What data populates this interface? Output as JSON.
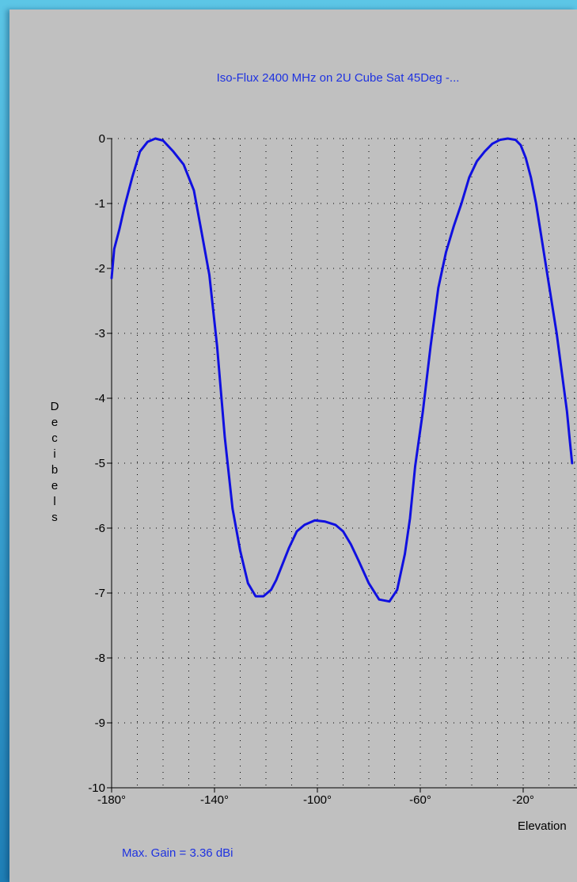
{
  "chart_data": {
    "type": "line",
    "title": "Iso-Flux 2400 MHz on 2U Cube Sat 45Deg -...",
    "ylabel": "Decibels",
    "xlabel": "Elevation",
    "xlim": [
      -180,
      0
    ],
    "ylim": [
      -10,
      0
    ],
    "grid": true,
    "x_ticks": [
      "-180°",
      "-140°",
      "-100°",
      "-60°",
      "-20°"
    ],
    "y_ticks": [
      "0",
      "-1",
      "-2",
      "-3",
      "-4",
      "-5",
      "-6",
      "-7",
      "-8",
      "-9",
      "-10"
    ],
    "series": [
      {
        "color": "#1010e0",
        "x": [
          -180,
          -179,
          -177,
          -175,
          -172,
          -169,
          -166,
          -163,
          -160,
          -156,
          -152,
          -148,
          -145,
          -142,
          -139,
          -136,
          -133,
          -130,
          -127,
          -124,
          -121,
          -118,
          -116,
          -114,
          -111,
          -108,
          -105,
          -101,
          -97,
          -93,
          -90,
          -87,
          -84,
          -80,
          -76,
          -72,
          -69,
          -66,
          -64,
          -62,
          -59,
          -56,
          -53,
          -50,
          -47,
          -44,
          -41,
          -38,
          -35,
          -32,
          -29,
          -26,
          -23,
          -21,
          -19,
          -17,
          -15,
          -13,
          -11,
          -9,
          -7,
          -5,
          -3,
          -2,
          -1
        ],
        "values": [
          -2.15,
          -1.7,
          -1.4,
          -1.05,
          -0.6,
          -0.2,
          -0.05,
          0.0,
          -0.03,
          -0.2,
          -0.4,
          -0.8,
          -1.45,
          -2.1,
          -3.2,
          -4.6,
          -5.7,
          -6.35,
          -6.85,
          -7.05,
          -7.05,
          -6.95,
          -6.8,
          -6.6,
          -6.3,
          -6.05,
          -5.95,
          -5.88,
          -5.9,
          -5.95,
          -6.05,
          -6.25,
          -6.5,
          -6.85,
          -7.1,
          -7.13,
          -6.95,
          -6.4,
          -5.85,
          -5.05,
          -4.2,
          -3.2,
          -2.3,
          -1.75,
          -1.35,
          -1.0,
          -0.6,
          -0.35,
          -0.2,
          -0.08,
          -0.02,
          0.0,
          -0.02,
          -0.1,
          -0.3,
          -0.6,
          -1.0,
          -1.5,
          -2.0,
          -2.5,
          -3.0,
          -3.6,
          -4.2,
          -4.6,
          -5.0
        ]
      }
    ]
  },
  "footer": {
    "max_gain": "Max. Gain = 3.36 dBi"
  }
}
